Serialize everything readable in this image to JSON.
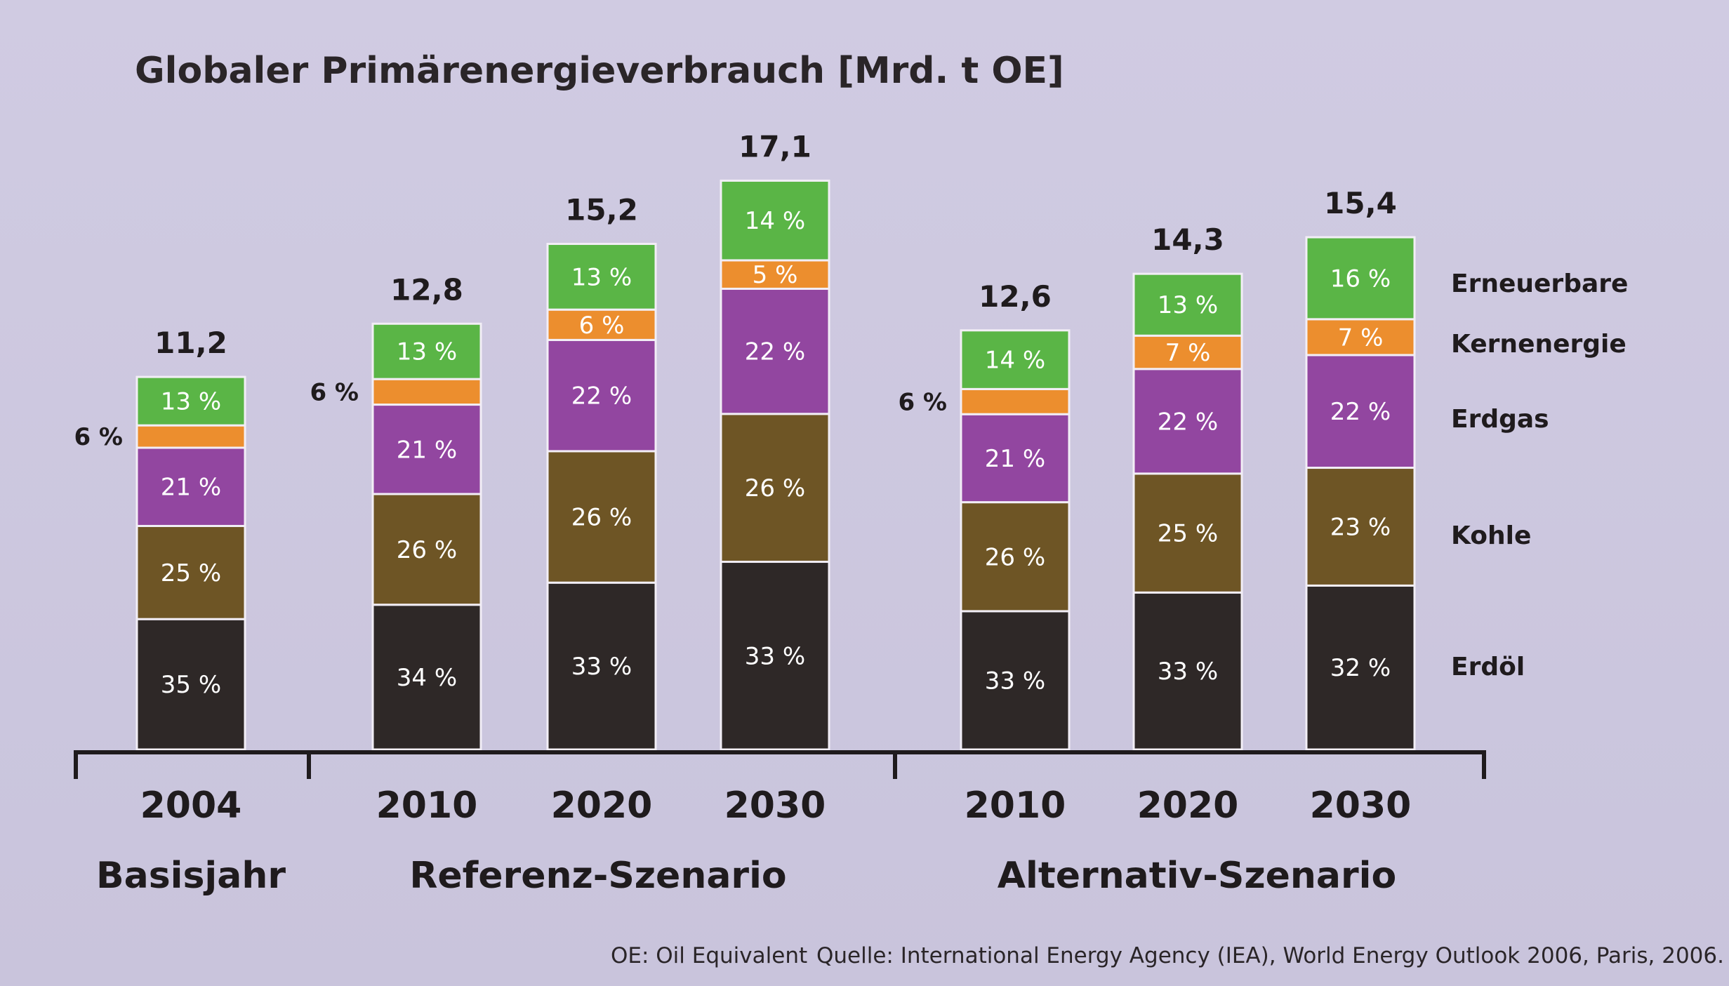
{
  "chart_data": {
    "type": "bar",
    "stacked": true,
    "title": "Globaler Primärenergieverbrauch [Mrd. t OE]",
    "legend": [
      "Erdöl",
      "Kohle",
      "Erdgas",
      "Kernenergie",
      "Erneuerbare"
    ],
    "colors": {
      "Erdöl": "#2e2827",
      "Kohle": "#6e5525",
      "Erdgas": "#9246a0",
      "Kernenergie": "#ec8e2e",
      "Erneuerbare": "#5ab546"
    },
    "groups": [
      {
        "label": "Basisjahr",
        "bars": [
          0
        ]
      },
      {
        "label": "Referenz-Szenario",
        "bars": [
          1,
          2,
          3
        ]
      },
      {
        "label": "Alternativ-Szenario",
        "bars": [
          4,
          5,
          6
        ]
      }
    ],
    "bars": [
      {
        "year": "2004",
        "total": 11.2,
        "total_label": "11,2",
        "segments": [
          {
            "name": "Erdöl",
            "pct": 35,
            "label": "35 %"
          },
          {
            "name": "Kohle",
            "pct": 25,
            "label": "25 %"
          },
          {
            "name": "Erdgas",
            "pct": 21,
            "label": "21 %"
          },
          {
            "name": "Kernenergie",
            "pct": 6,
            "label": "6 %",
            "outside": true
          },
          {
            "name": "Erneuerbare",
            "pct": 13,
            "label": "13 %"
          }
        ]
      },
      {
        "year": "2010",
        "total": 12.8,
        "total_label": "12,8",
        "segments": [
          {
            "name": "Erdöl",
            "pct": 34,
            "label": "34 %"
          },
          {
            "name": "Kohle",
            "pct": 26,
            "label": "26 %"
          },
          {
            "name": "Erdgas",
            "pct": 21,
            "label": "21 %"
          },
          {
            "name": "Kernenergie",
            "pct": 6,
            "label": "6 %",
            "outside": true
          },
          {
            "name": "Erneuerbare",
            "pct": 13,
            "label": "13 %"
          }
        ]
      },
      {
        "year": "2020",
        "total": 15.2,
        "total_label": "15,2",
        "segments": [
          {
            "name": "Erdöl",
            "pct": 33,
            "label": "33 %"
          },
          {
            "name": "Kohle",
            "pct": 26,
            "label": "26 %"
          },
          {
            "name": "Erdgas",
            "pct": 22,
            "label": "22 %"
          },
          {
            "name": "Kernenergie",
            "pct": 6,
            "label": "6 %"
          },
          {
            "name": "Erneuerbare",
            "pct": 13,
            "label": "13 %"
          }
        ]
      },
      {
        "year": "2030",
        "total": 17.1,
        "total_label": "17,1",
        "segments": [
          {
            "name": "Erdöl",
            "pct": 33,
            "label": "33 %"
          },
          {
            "name": "Kohle",
            "pct": 26,
            "label": "26 %"
          },
          {
            "name": "Erdgas",
            "pct": 22,
            "label": "22 %"
          },
          {
            "name": "Kernenergie",
            "pct": 5,
            "label": "5 %"
          },
          {
            "name": "Erneuerbare",
            "pct": 14,
            "label": "14 %"
          }
        ]
      },
      {
        "year": "2010",
        "total": 12.6,
        "total_label": "12,6",
        "segments": [
          {
            "name": "Erdöl",
            "pct": 33,
            "label": "33 %"
          },
          {
            "name": "Kohle",
            "pct": 26,
            "label": "26 %"
          },
          {
            "name": "Erdgas",
            "pct": 21,
            "label": "21 %"
          },
          {
            "name": "Kernenergie",
            "pct": 6,
            "label": "6 %",
            "outside": true
          },
          {
            "name": "Erneuerbare",
            "pct": 14,
            "label": "14 %"
          }
        ]
      },
      {
        "year": "2020",
        "total": 14.3,
        "total_label": "14,3",
        "segments": [
          {
            "name": "Erdöl",
            "pct": 33,
            "label": "33 %"
          },
          {
            "name": "Kohle",
            "pct": 25,
            "label": "25 %"
          },
          {
            "name": "Erdgas",
            "pct": 22,
            "label": "22 %"
          },
          {
            "name": "Kernenergie",
            "pct": 7,
            "label": "7 %"
          },
          {
            "name": "Erneuerbare",
            "pct": 13,
            "label": "13 %"
          }
        ]
      },
      {
        "year": "2030",
        "total": 15.4,
        "total_label": "15,4",
        "segments": [
          {
            "name": "Erdöl",
            "pct": 32,
            "label": "32 %"
          },
          {
            "name": "Kohle",
            "pct": 23,
            "label": "23 %"
          },
          {
            "name": "Erdgas",
            "pct": 22,
            "label": "22 %"
          },
          {
            "name": "Kernenergie",
            "pct": 7,
            "label": "7 %"
          },
          {
            "name": "Erneuerbare",
            "pct": 16,
            "label": "16 %"
          }
        ]
      }
    ]
  },
  "footnote": {
    "oe": "OE: Oil Equivalent",
    "source": "Quelle: International Energy Agency (IEA), World Energy Outlook 2006, Paris, 2006."
  }
}
